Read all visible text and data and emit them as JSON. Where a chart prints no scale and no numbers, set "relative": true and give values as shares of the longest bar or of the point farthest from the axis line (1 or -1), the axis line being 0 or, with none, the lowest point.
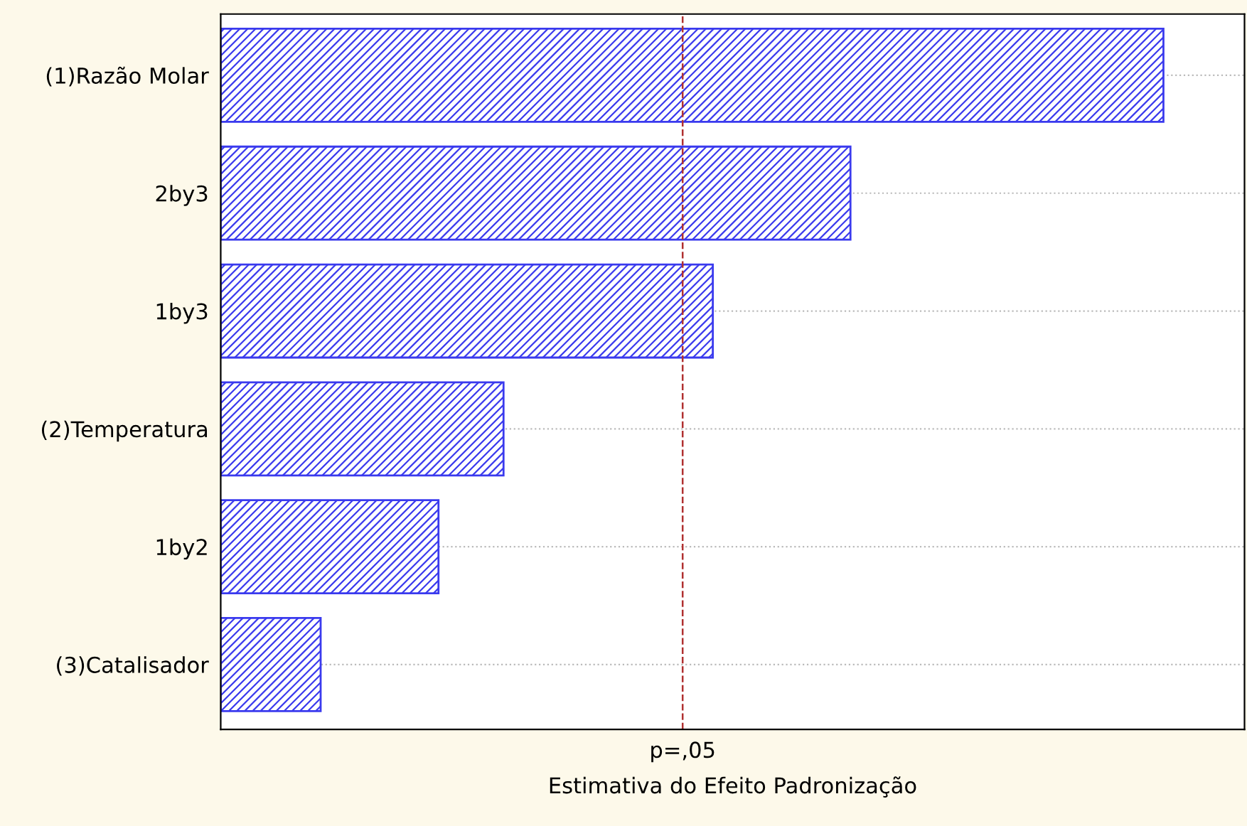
{
  "chart_data": {
    "type": "bar",
    "orientation": "horizontal",
    "relative": true,
    "categories": [
      "(1)Razão Molar",
      "2by3",
      "1by3",
      "(2)Temperatura",
      "1by2",
      "(3)Catalisador"
    ],
    "values": [
      1,
      0.668,
      0.522,
      0.3,
      0.231,
      0.106
    ],
    "color": "#3a3aee",
    "xlabel": "Estimativa do Efeito Padronização",
    "ref_lines": [
      {
        "axis": "x",
        "value": 0.49,
        "label": "p=,05",
        "color": "#b03030",
        "line_style": "dashed"
      }
    ],
    "grid": "y"
  }
}
